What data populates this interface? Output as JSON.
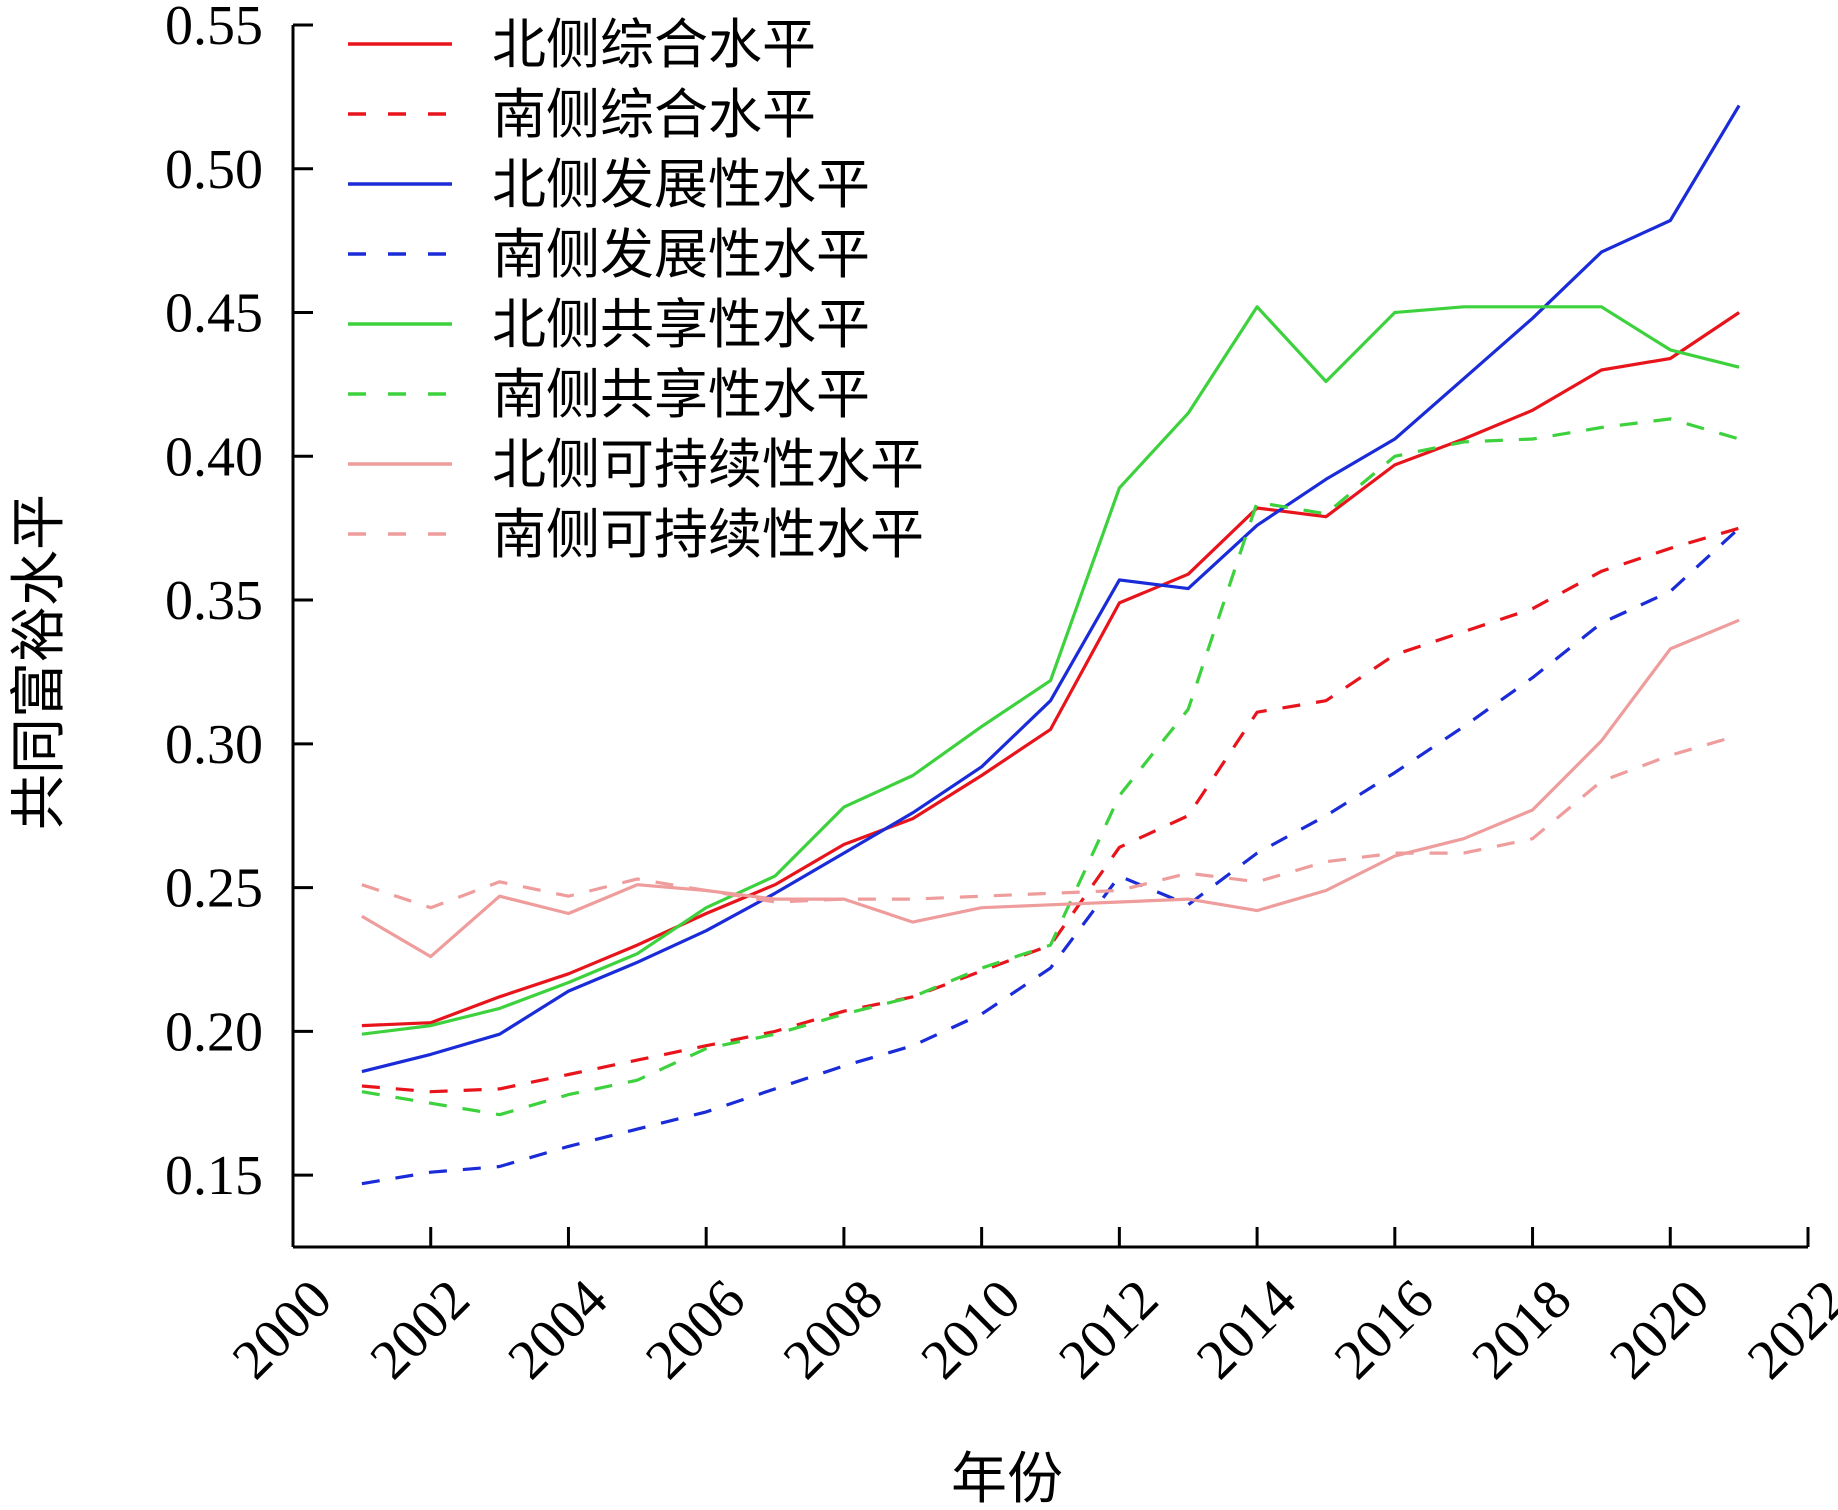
{
  "chart_data": {
    "type": "line",
    "xlabel": "年份",
    "ylabel": "共同富裕水平",
    "xlim": [
      2000,
      2022
    ],
    "ylim": [
      0.125,
      0.55
    ],
    "xticks": [
      "2000",
      "2002",
      "2004",
      "2006",
      "2008",
      "2010",
      "2012",
      "2014",
      "2016",
      "2018",
      "2020",
      "2022"
    ],
    "yticks": [
      "0.15",
      "0.20",
      "0.25",
      "0.30",
      "0.35",
      "0.40",
      "0.45",
      "0.50",
      "0.55"
    ],
    "grid": false,
    "legend_position": "top-left",
    "x": [
      2001,
      2002,
      2003,
      2004,
      2005,
      2006,
      2007,
      2008,
      2009,
      2010,
      2011,
      2012,
      2013,
      2014,
      2015,
      2016,
      2017,
      2018,
      2019,
      2020,
      2021
    ],
    "series": [
      {
        "name": "北侧综合水平",
        "color": "#e8141c",
        "dash": "solid",
        "values": [
          0.202,
          0.203,
          0.212,
          0.22,
          0.23,
          0.241,
          0.251,
          0.265,
          0.274,
          0.289,
          0.305,
          0.349,
          0.359,
          0.382,
          0.379,
          0.397,
          0.406,
          0.416,
          0.43,
          0.434,
          0.45
        ]
      },
      {
        "name": "南侧综合水平",
        "color": "#e8141c",
        "dash": "dashed",
        "values": [
          0.181,
          0.179,
          0.18,
          0.185,
          0.19,
          0.195,
          0.2,
          0.207,
          0.212,
          0.221,
          0.23,
          0.264,
          0.275,
          0.311,
          0.315,
          0.331,
          0.339,
          0.347,
          0.36,
          0.368,
          0.375
        ]
      },
      {
        "name": "北侧发展性水平",
        "color": "#1a2bd8",
        "dash": "solid",
        "values": [
          0.186,
          0.192,
          0.199,
          0.214,
          0.224,
          0.235,
          0.248,
          0.262,
          0.276,
          0.292,
          0.315,
          0.357,
          0.354,
          0.376,
          0.392,
          0.406,
          0.427,
          0.448,
          0.471,
          0.482,
          0.522
        ]
      },
      {
        "name": "南侧发展性水平",
        "color": "#1a2bd8",
        "dash": "dashed",
        "values": [
          0.147,
          0.151,
          0.153,
          0.16,
          0.166,
          0.172,
          0.18,
          0.188,
          0.195,
          0.206,
          0.222,
          0.254,
          0.244,
          0.262,
          0.275,
          0.29,
          0.306,
          0.323,
          0.342,
          0.353,
          0.375
        ]
      },
      {
        "name": "北侧共享性水平",
        "color": "#3dd23d",
        "dash": "solid",
        "values": [
          0.199,
          0.202,
          0.208,
          0.217,
          0.227,
          0.243,
          0.254,
          0.278,
          0.289,
          0.306,
          0.322,
          0.389,
          0.415,
          0.452,
          0.426,
          0.45,
          0.452,
          0.452,
          0.452,
          0.437,
          0.431
        ]
      },
      {
        "name": "南侧共享性水平",
        "color": "#3dd23d",
        "dash": "dashed",
        "values": [
          0.179,
          0.175,
          0.171,
          0.178,
          0.183,
          0.194,
          0.199,
          0.206,
          0.212,
          0.222,
          0.23,
          0.282,
          0.312,
          0.384,
          0.38,
          0.4,
          0.405,
          0.406,
          0.41,
          0.413,
          0.406
        ]
      },
      {
        "name": "北侧可持续性水平",
        "color": "#ef9c9c",
        "dash": "solid",
        "values": [
          0.24,
          0.226,
          0.247,
          0.241,
          0.251,
          0.249,
          0.246,
          0.246,
          0.238,
          0.243,
          0.244,
          0.245,
          0.246,
          0.242,
          0.249,
          0.261,
          0.267,
          0.277,
          0.301,
          0.333,
          0.343
        ]
      },
      {
        "name": "南侧可持续性水平",
        "color": "#ef9c9c",
        "dash": "dashed",
        "values": [
          0.251,
          0.243,
          0.252,
          0.247,
          0.253,
          0.249,
          0.245,
          0.246,
          0.246,
          0.247,
          0.248,
          0.249,
          0.255,
          0.252,
          0.259,
          0.262,
          0.262,
          0.267,
          0.287,
          0.296,
          0.303
        ]
      }
    ]
  }
}
